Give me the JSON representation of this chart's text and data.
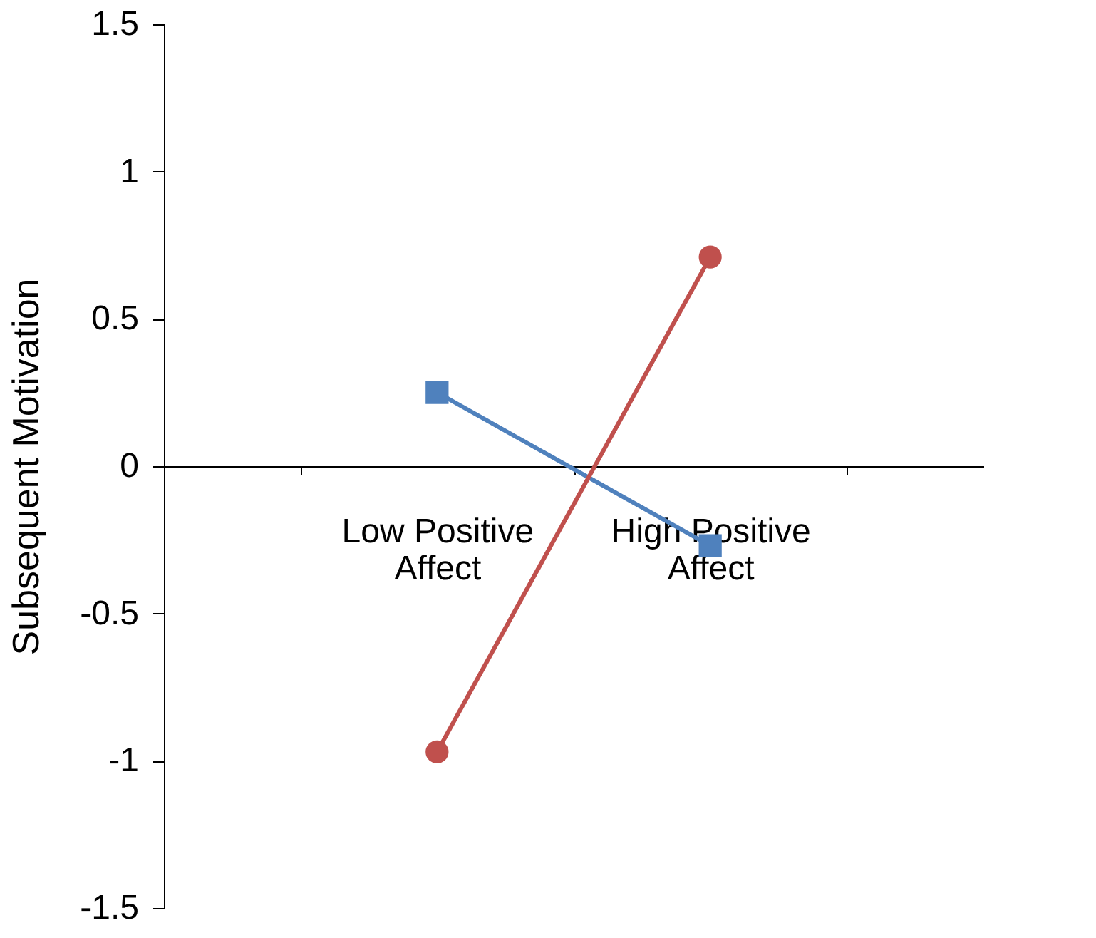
{
  "chart_data": {
    "type": "line",
    "ylabel": "Subsequent Motivation",
    "categories": [
      "Low Positive Affect",
      "High Positive Affect"
    ],
    "series": [
      {
        "color": "#4f81bd",
        "marker": "square",
        "values": [
          0.25,
          -0.27
        ]
      },
      {
        "color": "#c0504d",
        "marker": "circle",
        "values": [
          -0.97,
          0.71
        ]
      }
    ],
    "ylim": [
      -1.5,
      1.5
    ],
    "yticks": [
      -1.5,
      -1,
      -0.5,
      0,
      0.5,
      1,
      1.5
    ],
    "grid": false,
    "legend": false,
    "line_style": "solid"
  }
}
